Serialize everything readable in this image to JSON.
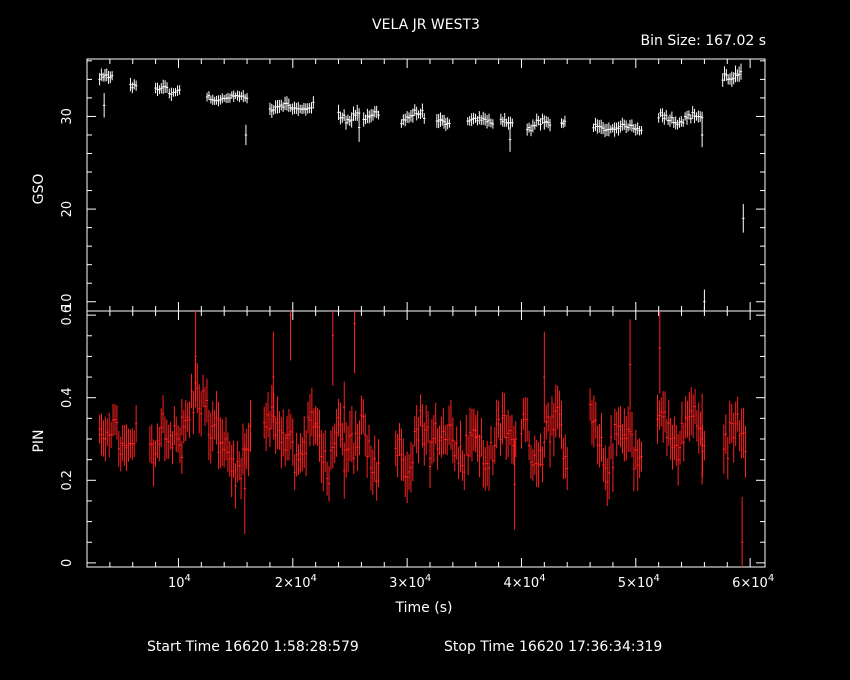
{
  "title": "VELA JR WEST3",
  "bin_size": "Bin Size: 167.02 s",
  "xlabel": "Time (s)",
  "start_time": "Start Time 16620  1:58:28:579",
  "stop_time": "Stop Time 16620 17:36:34:319",
  "colors": {
    "gso": "#ffffff",
    "pin": "#ff2020",
    "frame": "#ffffff"
  },
  "chart_data": [
    {
      "type": "scatter",
      "panel": "GSO",
      "ylabel": "GSO",
      "xlim": [
        2000,
        61300
      ],
      "ylim": [
        9,
        36.2
      ],
      "yticks": [
        10,
        20,
        30
      ],
      "ytick_labels": [
        "10",
        "20",
        "30"
      ],
      "segments": [
        {
          "x0": 3100,
          "x1": 4200,
          "y": 34.5,
          "spread": 0.8,
          "err": 0.6,
          "spikes": [
            [
              3500,
              31.2
            ]
          ]
        },
        {
          "x0": 5800,
          "x1": 6300,
          "y": 33.5,
          "spread": 0.5,
          "err": 0.6,
          "spikes": []
        },
        {
          "x0": 8000,
          "x1": 9000,
          "y": 33.0,
          "spread": 0.5,
          "err": 0.6,
          "spikes": []
        },
        {
          "x0": 9200,
          "x1": 10100,
          "y": 32.5,
          "spread": 0.6,
          "err": 0.6,
          "spikes": []
        },
        {
          "x0": 12500,
          "x1": 16000,
          "y": 32.0,
          "spread": 0.4,
          "err": 0.5,
          "spikes": [
            [
              15900,
              28.0
            ]
          ]
        },
        {
          "x0": 18000,
          "x1": 21800,
          "y": 31.0,
          "spread": 0.6,
          "err": 0.6,
          "spikes": []
        },
        {
          "x0": 24000,
          "x1": 25800,
          "y": 30.2,
          "spread": 0.9,
          "err": 0.7,
          "spikes": [
            [
              25800,
              28.8
            ]
          ]
        },
        {
          "x0": 26200,
          "x1": 27500,
          "y": 30.0,
          "spread": 0.7,
          "err": 0.6,
          "spikes": []
        },
        {
          "x0": 29500,
          "x1": 31500,
          "y": 30.0,
          "spread": 0.8,
          "err": 0.6,
          "spikes": []
        },
        {
          "x0": 32600,
          "x1": 33700,
          "y": 29.5,
          "spread": 0.6,
          "err": 0.6,
          "spikes": []
        },
        {
          "x0": 35300,
          "x1": 37500,
          "y": 29.5,
          "spread": 0.4,
          "err": 0.6,
          "spikes": []
        },
        {
          "x0": 38200,
          "x1": 39200,
          "y": 29.5,
          "spread": 0.5,
          "err": 0.6,
          "spikes": [
            [
              39000,
              27.5
            ]
          ]
        },
        {
          "x0": 40500,
          "x1": 42500,
          "y": 29.0,
          "spread": 0.8,
          "err": 0.6,
          "spikes": []
        },
        {
          "x0": 43500,
          "x1": 43800,
          "y": 29.5,
          "spread": 0.3,
          "err": 0.6,
          "spikes": []
        },
        {
          "x0": 46300,
          "x1": 50500,
          "y": 28.8,
          "spread": 0.4,
          "err": 0.6,
          "spikes": []
        },
        {
          "x0": 52000,
          "x1": 55800,
          "y": 29.8,
          "spread": 0.7,
          "err": 0.6,
          "spikes": [
            [
              55800,
              28.0
            ],
            [
              56000,
              10.0
            ]
          ]
        },
        {
          "x0": 57600,
          "x1": 59200,
          "y": 34.5,
          "spread": 1.0,
          "err": 0.7,
          "spikes": [
            [
              59400,
              19.0
            ]
          ]
        }
      ]
    },
    {
      "type": "scatter",
      "panel": "PIN",
      "ylabel": "PIN",
      "xlim": [
        2000,
        61300
      ],
      "ylim": [
        -0.01,
        0.61
      ],
      "yticks": [
        0,
        0.2,
        0.4,
        0.6
      ],
      "ytick_labels": [
        "0",
        "0.2",
        "0.4",
        "0.6"
      ],
      "xticks": [
        10000,
        20000,
        30000,
        40000,
        50000,
        60000
      ],
      "xtick_labels": [
        [
          "10",
          "4"
        ],
        [
          "2×10",
          "4"
        ],
        [
          "3×10",
          "4"
        ],
        [
          "4×10",
          "4"
        ],
        [
          "5×10",
          "4"
        ],
        [
          "6×10",
          "4"
        ]
      ],
      "segments": [
        {
          "x0": 3100,
          "x1": 6300,
          "y": 0.3,
          "spread": 0.07,
          "err": 0.045,
          "spikes": []
        },
        {
          "x0": 7500,
          "x1": 10300,
          "y": 0.3,
          "spread": 0.08,
          "err": 0.045,
          "spikes": []
        },
        {
          "x0": 10300,
          "x1": 13500,
          "y": 0.36,
          "spread": 0.1,
          "err": 0.05,
          "spikes": [
            [
              11500,
              0.5
            ]
          ]
        },
        {
          "x0": 13500,
          "x1": 16300,
          "y": 0.26,
          "spread": 0.09,
          "err": 0.05,
          "spikes": [
            [
              15800,
              0.18
            ]
          ]
        },
        {
          "x0": 17500,
          "x1": 19500,
          "y": 0.3,
          "spread": 0.08,
          "err": 0.05,
          "spikes": [
            [
              18300,
              0.45
            ]
          ]
        },
        {
          "x0": 19500,
          "x1": 22000,
          "y": 0.3,
          "spread": 0.09,
          "err": 0.05,
          "spikes": [
            [
              19800,
              0.6
            ]
          ]
        },
        {
          "x0": 22000,
          "x1": 24500,
          "y": 0.28,
          "spread": 0.1,
          "err": 0.055,
          "spikes": [
            [
              23500,
              0.55
            ]
          ]
        },
        {
          "x0": 24500,
          "x1": 27500,
          "y": 0.28,
          "spread": 0.1,
          "err": 0.055,
          "spikes": [
            [
              25400,
              0.58
            ]
          ]
        },
        {
          "x0": 29000,
          "x1": 32000,
          "y": 0.29,
          "spread": 0.09,
          "err": 0.05,
          "spikes": []
        },
        {
          "x0": 32000,
          "x1": 36000,
          "y": 0.3,
          "spread": 0.09,
          "err": 0.05,
          "spikes": []
        },
        {
          "x0": 36000,
          "x1": 39500,
          "y": 0.29,
          "spread": 0.08,
          "err": 0.05,
          "spikes": [
            [
              39400,
              0.19
            ]
          ]
        },
        {
          "x0": 40000,
          "x1": 44000,
          "y": 0.3,
          "spread": 0.09,
          "err": 0.05,
          "spikes": [
            [
              42000,
              0.45
            ]
          ]
        },
        {
          "x0": 46000,
          "x1": 50500,
          "y": 0.29,
          "spread": 0.1,
          "err": 0.05,
          "spikes": [
            [
              49500,
              0.48
            ]
          ]
        },
        {
          "x0": 51900,
          "x1": 56000,
          "y": 0.32,
          "spread": 0.08,
          "err": 0.05,
          "spikes": [
            [
              52100,
              0.52
            ],
            [
              55800,
              0.3
            ]
          ]
        },
        {
          "x0": 57700,
          "x1": 59600,
          "y": 0.3,
          "spread": 0.09,
          "err": 0.05,
          "spikes": [
            [
              59300,
              0.05
            ]
          ]
        }
      ]
    }
  ]
}
